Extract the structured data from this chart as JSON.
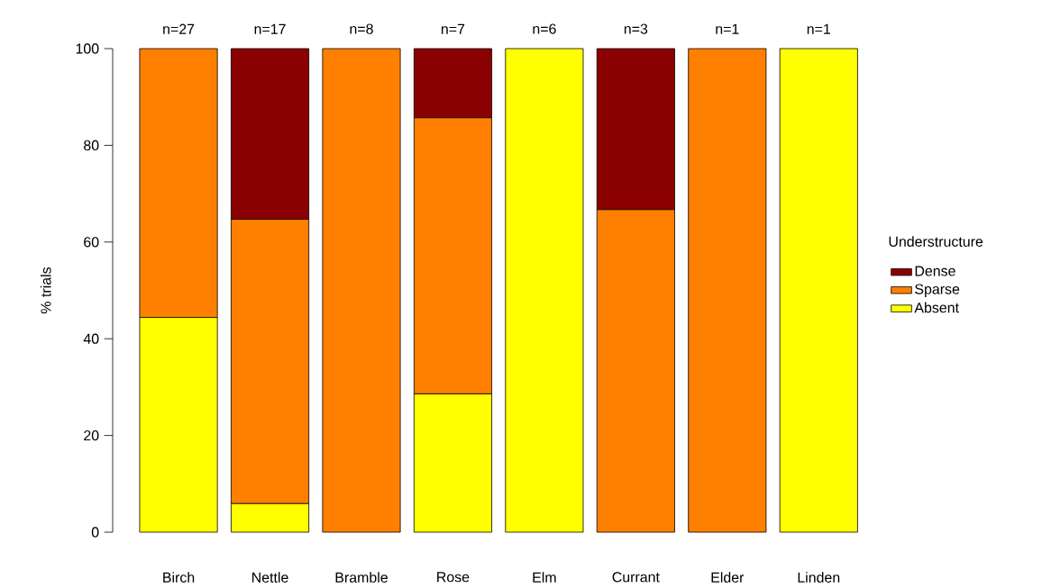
{
  "chart_data": {
    "type": "bar",
    "stacked": true,
    "ylabel": "% trials",
    "legend_title": "Understructure",
    "legend": "right",
    "categories": [
      "Birch",
      "Nettle",
      "Bramble",
      "Rose",
      "Elm",
      "Currant",
      "Elder",
      "Linden"
    ],
    "series": [
      {
        "name": "Absent",
        "color": "#ffff00",
        "values": [
          44.4,
          5.9,
          0,
          28.6,
          100,
          0,
          0,
          100
        ]
      },
      {
        "name": "Sparse",
        "color": "#ff7f00",
        "values": [
          55.6,
          58.8,
          100,
          57.1,
          0,
          66.7,
          100,
          0
        ]
      },
      {
        "name": "Dense",
        "color": "#8b0000",
        "values": [
          0,
          35.3,
          0,
          14.3,
          0,
          33.3,
          0,
          0
        ]
      }
    ],
    "ylim": [
      0,
      100
    ],
    "yticks": [
      0,
      20,
      40,
      60,
      80,
      100
    ],
    "annotations": [
      {
        "text": "n=27",
        "x": "Birch",
        "y": 100
      },
      {
        "text": "n=17",
        "x": "Nettle",
        "y": 100
      },
      {
        "text": "n=8",
        "x": "Bramble",
        "y": 100
      },
      {
        "text": "n=7",
        "x": "Rose",
        "y": 100
      },
      {
        "text": "n=6",
        "x": "Elm",
        "y": 100
      },
      {
        "text": "n=3",
        "x": "Currant",
        "y": 100
      },
      {
        "text": "n=1",
        "x": "Elder",
        "y": 100
      },
      {
        "text": "n=1",
        "x": "Linden",
        "y": 100
      }
    ]
  }
}
